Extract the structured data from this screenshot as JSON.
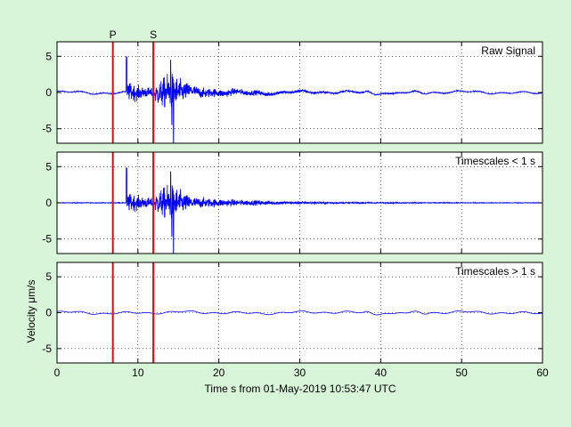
{
  "chart_data": {
    "type": "line",
    "background": "#d9f5d9",
    "plot_background": "#ffffff",
    "trace_color": "#0000ff",
    "marker_color": "#ff0000",
    "grid": "dotted",
    "xlabel": "Time s from 01-May-2019 10:53:47 UTC",
    "ylabel": "Velocity μm/s",
    "xlim": [
      0,
      60
    ],
    "ylim": [
      -7,
      7
    ],
    "xticks": [
      0,
      10,
      20,
      30,
      40,
      50,
      60
    ],
    "yticks": [
      -5,
      0,
      5
    ],
    "phase_markers": [
      {
        "label": "P",
        "time": 6.9
      },
      {
        "label": "S",
        "time": 11.9
      }
    ],
    "panels": [
      {
        "title": "Raw Signal",
        "has_lowfreq": true,
        "has_highfreq": true
      },
      {
        "title": "Timescales < 1 s",
        "has_lowfreq": false,
        "has_highfreq": true
      },
      {
        "title": "Timescales > 1 s",
        "has_lowfreq": true,
        "has_highfreq": false
      }
    ],
    "signal_envelope": {
      "onset_time": 8.6,
      "onset_peak": 4.8,
      "max_time": 14.4,
      "max_amplitude_pos": 4.3,
      "max_amplitude_neg": -7.2,
      "coda_end": 30,
      "background_noise": 0.15
    }
  }
}
